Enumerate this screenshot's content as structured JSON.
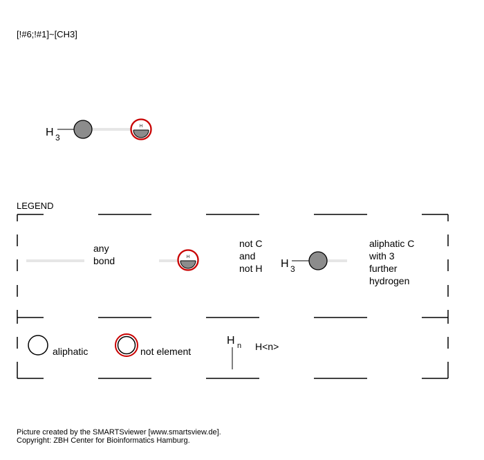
{
  "smarts": "[!#6;!#1]~[CH3]",
  "molecule": {
    "h_label": "H",
    "h_count": "3",
    "atom_h_mark": "H"
  },
  "legend": {
    "title": "LEGEND",
    "row1": {
      "any_bond_label": [
        "any",
        "bond"
      ],
      "not_c_h_label": [
        "not C",
        "and",
        "not H"
      ],
      "not_c_h_atom_mark": "H",
      "ch3_h_label": "H",
      "ch3_h_count": "3",
      "ch3_label": [
        "aliphatic C",
        "with 3",
        "further",
        "hydrogen"
      ]
    },
    "row2": {
      "aliphatic_label": "aliphatic",
      "not_element_label": "not element",
      "hn_h": "H",
      "hn_sub": "n",
      "hn_label": "H<n>"
    }
  },
  "footer": {
    "line1": "Picture created by the SMARTSviewer [www.smartsview.de].",
    "line2": "Copyright: ZBH Center for Bioinformatics Hamburg."
  },
  "colors": {
    "carbon_fill": "#8c8c8c",
    "not_element_ring": "#c80000",
    "bond": "#e6e6e6",
    "frame": "#000000"
  }
}
